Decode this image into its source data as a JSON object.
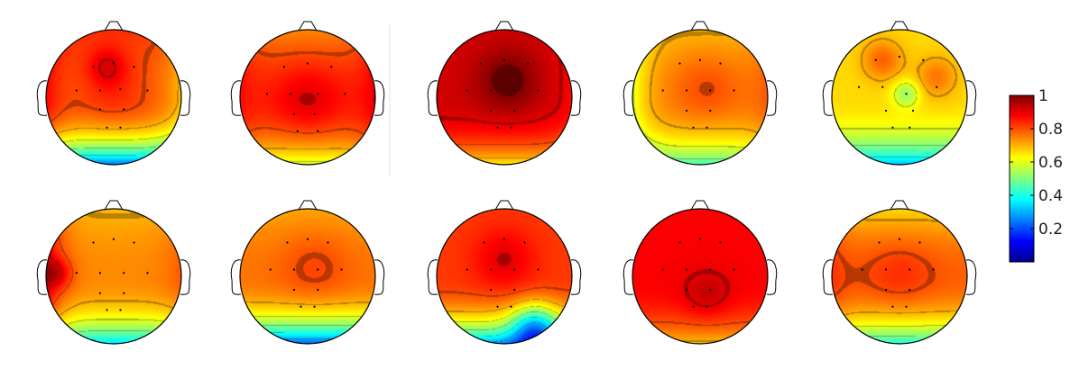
{
  "figure": {
    "type": "heatmap",
    "description_none": "",
    "rows": 2,
    "columns": 5,
    "colormap": "jet",
    "colorbar": {
      "range": [
        0,
        1
      ],
      "ticks": [
        {
          "value": 1,
          "label": "1"
        },
        {
          "value": 0.8,
          "label": "0.8"
        },
        {
          "value": 0.6,
          "label": "0.6"
        },
        {
          "value": 0.4,
          "label": "0.4"
        },
        {
          "value": 0.2,
          "label": "0.2"
        }
      ]
    },
    "topomaps": [
      {
        "id": "r1c1",
        "row": 1,
        "col": 1,
        "base": 0.78,
        "front": 0.05,
        "back": -0.55,
        "left": 0.1,
        "right": -0.1,
        "blobs": [
          {
            "cx": -0.1,
            "cy": -0.45,
            "r": 0.3,
            "a": 0.1
          },
          {
            "cx": 0.0,
            "cy": -0.05,
            "r": 0.5,
            "a": 0.05
          }
        ],
        "electrodes": [
          [
            -0.3,
            -0.45
          ],
          [
            0.0,
            -0.5
          ],
          [
            0.3,
            -0.45
          ],
          [
            -0.55,
            -0.1
          ],
          [
            -0.2,
            -0.1
          ],
          [
            0.1,
            -0.12
          ],
          [
            0.5,
            -0.1
          ],
          [
            -0.2,
            0.18
          ],
          [
            0.15,
            0.18
          ],
          [
            -0.1,
            0.45
          ],
          [
            0.1,
            0.45
          ]
        ]
      },
      {
        "id": "r1c2",
        "row": 1,
        "col": 2,
        "base": 0.82,
        "front": -0.08,
        "back": -0.25,
        "left": 0.05,
        "right": 0.08,
        "blobs": [
          {
            "cx": 0.0,
            "cy": 0.05,
            "r": 0.55,
            "a": 0.08
          }
        ],
        "electrodes": [
          [
            -0.35,
            -0.45
          ],
          [
            0.0,
            -0.5
          ],
          [
            0.35,
            -0.45
          ],
          [
            -0.6,
            -0.05
          ],
          [
            -0.25,
            -0.05
          ],
          [
            0.15,
            -0.05
          ],
          [
            0.55,
            -0.05
          ],
          [
            -0.2,
            0.25
          ],
          [
            0.1,
            0.25
          ],
          [
            -0.15,
            0.5
          ],
          [
            0.15,
            0.5
          ]
        ]
      },
      {
        "id": "r1c3",
        "row": 1,
        "col": 3,
        "base": 0.92,
        "front": 0.0,
        "back": -0.28,
        "left": 0.0,
        "right": -0.05,
        "blobs": [
          {
            "cx": 0.05,
            "cy": -0.25,
            "r": 0.45,
            "a": 0.1
          }
        ],
        "electrodes": [
          [
            -0.35,
            -0.5
          ],
          [
            0.0,
            -0.55
          ],
          [
            0.35,
            -0.5
          ],
          [
            -0.55,
            -0.1
          ],
          [
            -0.2,
            -0.1
          ],
          [
            0.15,
            -0.1
          ],
          [
            0.5,
            -0.1
          ],
          [
            -0.2,
            0.2
          ],
          [
            0.15,
            0.2
          ],
          [
            -0.1,
            0.45
          ],
          [
            0.1,
            0.45
          ]
        ]
      },
      {
        "id": "r1c4",
        "row": 1,
        "col": 4,
        "base": 0.74,
        "front": -0.05,
        "back": -0.3,
        "left": -0.15,
        "right": 0.05,
        "blobs": [
          {
            "cx": 0.1,
            "cy": -0.15,
            "r": 0.5,
            "a": 0.06
          }
        ],
        "electrodes": [
          [
            -0.3,
            -0.5
          ],
          [
            0.0,
            -0.55
          ],
          [
            0.3,
            -0.5
          ],
          [
            -0.55,
            -0.1
          ],
          [
            -0.2,
            -0.1
          ],
          [
            0.15,
            -0.1
          ],
          [
            0.5,
            -0.1
          ],
          [
            -0.2,
            0.2
          ],
          [
            0.15,
            0.2
          ],
          [
            -0.1,
            0.45
          ],
          [
            0.1,
            0.45
          ]
        ]
      },
      {
        "id": "r1c5",
        "row": 1,
        "col": 5,
        "base": 0.66,
        "front": 0.0,
        "back": -0.35,
        "left": 0.0,
        "right": 0.0,
        "blobs": [
          {
            "cx": 0.1,
            "cy": -0.05,
            "r": 0.2,
            "a": -0.14
          },
          {
            "cx": -0.25,
            "cy": -0.55,
            "r": 0.3,
            "a": 0.12
          },
          {
            "cx": 0.55,
            "cy": -0.3,
            "r": 0.3,
            "a": 0.1
          }
        ],
        "electrodes": [
          [
            -0.35,
            -0.55
          ],
          [
            0.0,
            -0.6
          ],
          [
            0.35,
            -0.55
          ],
          [
            -0.6,
            -0.15
          ],
          [
            -0.25,
            -0.15
          ],
          [
            0.1,
            -0.05
          ],
          [
            0.55,
            -0.15
          ],
          [
            -0.2,
            0.2
          ],
          [
            0.2,
            0.2
          ],
          [
            -0.1,
            0.45
          ],
          [
            0.15,
            0.45
          ]
        ]
      },
      {
        "id": "r2c1",
        "row": 2,
        "col": 1,
        "base": 0.74,
        "front": -0.05,
        "back": -0.4,
        "left": 0.18,
        "right": 0.05,
        "blobs": [
          {
            "cx": -0.85,
            "cy": -0.05,
            "r": 0.22,
            "a": 0.12
          }
        ],
        "electrodes": [
          [
            -0.3,
            -0.5
          ],
          [
            0.0,
            -0.55
          ],
          [
            0.3,
            -0.5
          ],
          [
            -0.55,
            -0.05
          ],
          [
            -0.2,
            -0.05
          ],
          [
            0.15,
            -0.05
          ],
          [
            0.5,
            -0.05
          ],
          [
            -0.2,
            0.25
          ],
          [
            0.15,
            0.25
          ],
          [
            -0.1,
            0.5
          ],
          [
            0.1,
            0.5
          ]
        ]
      },
      {
        "id": "r2c2",
        "row": 2,
        "col": 2,
        "base": 0.76,
        "front": -0.05,
        "back": -0.55,
        "left": 0.0,
        "right": 0.0,
        "blobs": [
          {
            "cx": 0.1,
            "cy": -0.15,
            "r": 0.5,
            "a": 0.05
          }
        ],
        "electrodes": [
          [
            -0.3,
            -0.5
          ],
          [
            0.0,
            -0.55
          ],
          [
            0.3,
            -0.5
          ],
          [
            -0.55,
            -0.1
          ],
          [
            -0.2,
            -0.1
          ],
          [
            0.15,
            -0.1
          ],
          [
            0.5,
            -0.1
          ],
          [
            -0.2,
            0.2
          ],
          [
            0.15,
            0.2
          ],
          [
            -0.1,
            0.45
          ],
          [
            0.1,
            0.45
          ]
        ]
      },
      {
        "id": "r2c3",
        "row": 2,
        "col": 3,
        "base": 0.82,
        "front": 0.0,
        "back": -0.55,
        "left": 0.0,
        "right": 0.0,
        "blobs": [
          {
            "cx": 0.45,
            "cy": 0.75,
            "r": 0.35,
            "a": -0.3
          },
          {
            "cx": 0.0,
            "cy": -0.25,
            "r": 0.45,
            "a": 0.08
          }
        ],
        "electrodes": [
          [
            -0.3,
            -0.5
          ],
          [
            0.0,
            -0.55
          ],
          [
            0.3,
            -0.5
          ],
          [
            -0.55,
            -0.1
          ],
          [
            -0.2,
            -0.1
          ],
          [
            0.15,
            -0.1
          ],
          [
            0.5,
            -0.1
          ],
          [
            -0.2,
            0.2
          ],
          [
            0.15,
            0.2
          ],
          [
            -0.1,
            0.45
          ],
          [
            0.1,
            0.45
          ]
        ]
      },
      {
        "id": "r2c4",
        "row": 2,
        "col": 4,
        "base": 0.88,
        "front": 0.0,
        "back": -0.2,
        "left": 0.0,
        "right": 0.0,
        "blobs": [
          {
            "cx": 0.1,
            "cy": 0.3,
            "r": 0.35,
            "a": 0.06
          }
        ],
        "electrodes": [
          [
            -0.3,
            -0.5
          ],
          [
            0.0,
            -0.55
          ],
          [
            0.3,
            -0.5
          ],
          [
            -0.55,
            -0.1
          ],
          [
            -0.2,
            -0.1
          ],
          [
            0.15,
            -0.1
          ],
          [
            0.5,
            -0.1
          ],
          [
            -0.2,
            0.2
          ],
          [
            0.15,
            0.2
          ],
          [
            -0.1,
            0.45
          ],
          [
            0.1,
            0.45
          ]
        ]
      },
      {
        "id": "r2c5",
        "row": 2,
        "col": 5,
        "base": 0.78,
        "front": -0.12,
        "back": -0.38,
        "left": 0.05,
        "right": 0.0,
        "blobs": [
          {
            "cx": 0.0,
            "cy": -0.05,
            "r": 0.5,
            "a": 0.05
          }
        ],
        "electrodes": [
          [
            -0.3,
            -0.5
          ],
          [
            0.0,
            -0.55
          ],
          [
            0.3,
            -0.5
          ],
          [
            -0.55,
            -0.1
          ],
          [
            -0.2,
            -0.1
          ],
          [
            0.15,
            -0.1
          ],
          [
            0.5,
            -0.1
          ],
          [
            -0.2,
            0.2
          ],
          [
            0.15,
            0.2
          ],
          [
            -0.1,
            0.45
          ],
          [
            0.1,
            0.45
          ]
        ]
      }
    ]
  }
}
